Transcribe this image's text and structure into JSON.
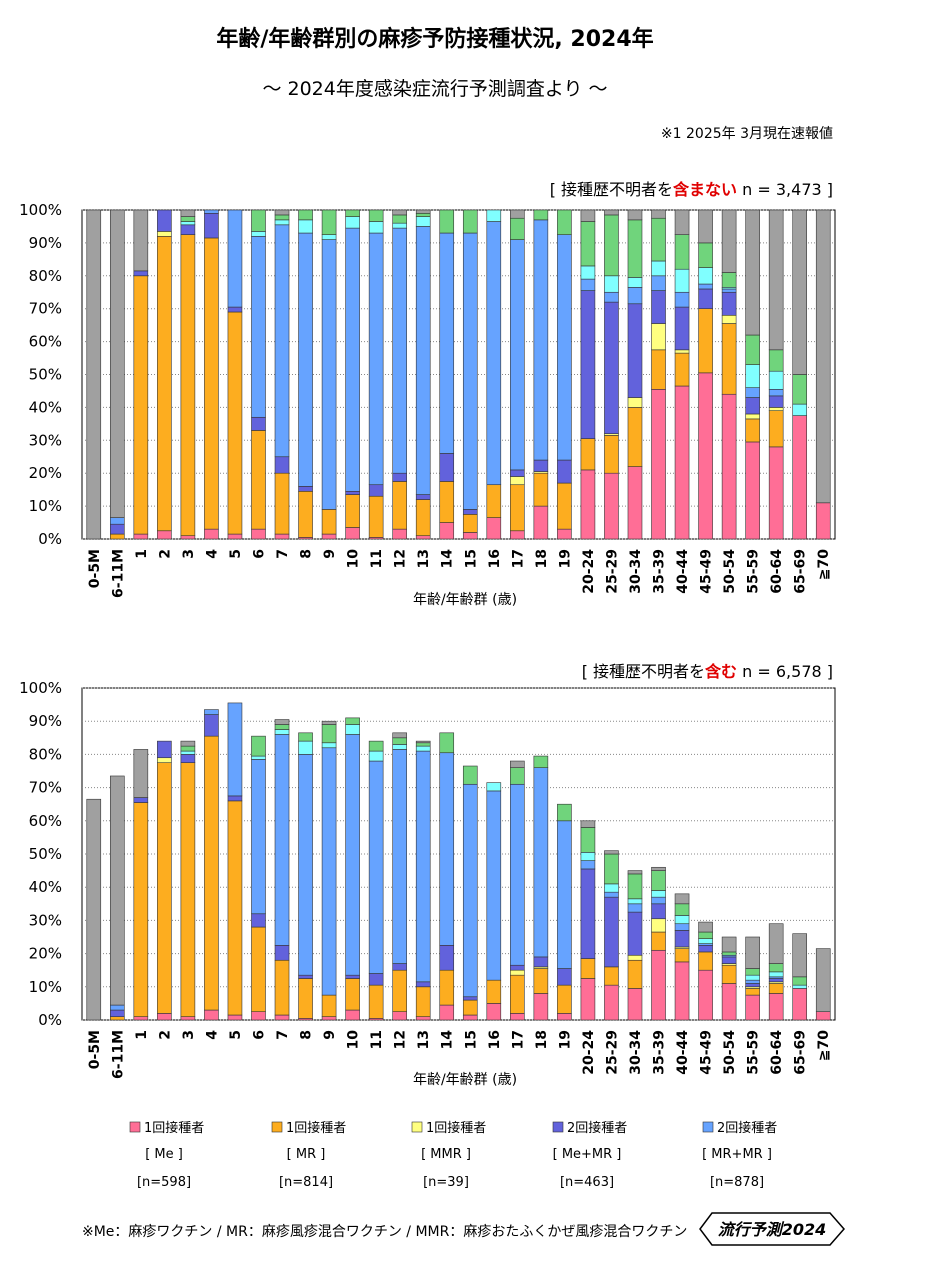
{
  "title": "年齢/年齢群別の麻疹予防接種状況, 2024年",
  "subtitle": "～ 2024年度感染症流行予測調査より ～",
  "note": "※1  2025年 3月現在速報値",
  "footnote": "※Me：麻疹ワクチン / MR：麻疹風疹混合ワクチン / MMR：麻疹おたふくかぜ風疹混合ワクチン",
  "badge": "流行予測2024",
  "chart_data": [
    {
      "type": "bar",
      "stacked": true,
      "header": [
        "[ 接種歴不明者を",
        "含まない",
        " n = 3,473 ]"
      ],
      "xlabel": "年齢/年齢群 (歳)",
      "categories": [
        "0-5M",
        "6-11M",
        "1",
        "2",
        "3",
        "4",
        "5",
        "6",
        "7",
        "8",
        "9",
        "10",
        "11",
        "12",
        "13",
        "14",
        "15",
        "16",
        "17",
        "18",
        "19",
        "20-24",
        "25-29",
        "30-34",
        "35-39",
        "40-44",
        "45-49",
        "50-54",
        "55-59",
        "60-64",
        "65-69",
        "≧70"
      ],
      "ylim": [
        0,
        100
      ],
      "yticks": [
        {
          "value": 0,
          "label": "0%"
        },
        {
          "value": 10,
          "label": "10%"
        },
        {
          "value": 20,
          "label": "20%"
        },
        {
          "value": 30,
          "label": "30%"
        },
        {
          "value": 40,
          "label": "40%"
        },
        {
          "value": 50,
          "label": "50%"
        },
        {
          "value": 60,
          "label": "60%"
        },
        {
          "value": 70,
          "label": "70%"
        },
        {
          "value": 80,
          "label": "80%"
        },
        {
          "value": 90,
          "label": "90%"
        },
        {
          "value": 100,
          "label": "100%"
        }
      ],
      "grid": true,
      "series": [
        {
          "color": "#ff6e96",
          "values": [
            0,
            0,
            1.5,
            2.5,
            1,
            3,
            1.5,
            3,
            1.5,
            0.5,
            1.5,
            3.5,
            0.5,
            3,
            1,
            5,
            2,
            6.5,
            2.5,
            10,
            3,
            21,
            20,
            22,
            45.5,
            46.5,
            50.5,
            44,
            29.5,
            28,
            37.5,
            11
          ]
        },
        {
          "color": "#fdad1f",
          "values": [
            0,
            1.5,
            78.5,
            89.5,
            91.5,
            88.5,
            67.5,
            30,
            18.5,
            14,
            7.5,
            10,
            12.5,
            14.5,
            11,
            12.5,
            5.5,
            10,
            14,
            10,
            14,
            9.5,
            11.5,
            18,
            12,
            10,
            19.5,
            21.5,
            7,
            11,
            0,
            0
          ]
        },
        {
          "color": "#ffff80",
          "values": [
            0,
            0,
            0,
            1.5,
            0,
            0,
            0,
            0,
            0,
            0,
            0,
            0,
            0,
            0,
            0,
            0,
            0,
            0,
            2.5,
            0.5,
            0,
            0,
            0.5,
            3,
            8,
            1,
            0,
            2.5,
            1.5,
            1,
            0,
            0
          ]
        },
        {
          "color": "#6262dc",
          "values": [
            0,
            3,
            1.5,
            6.5,
            3,
            7.5,
            1.5,
            4,
            5,
            1.5,
            0,
            1,
            3.5,
            2.5,
            1.5,
            8.5,
            1.5,
            0,
            2,
            3.5,
            7,
            45,
            40,
            28.5,
            10,
            13,
            6,
            7,
            5,
            3.5,
            0,
            0
          ]
        },
        {
          "color": "#66a3ff",
          "values": [
            0,
            2,
            0,
            0,
            0,
            1,
            29.5,
            55,
            70.5,
            77,
            82,
            80,
            76.5,
            74.5,
            81.5,
            67,
            84,
            80,
            70,
            73,
            68.5,
            3.5,
            3,
            5,
            4.5,
            4.5,
            1.5,
            1,
            3,
            2,
            0,
            0
          ]
        },
        {
          "color": "#80ffff",
          "values": [
            0,
            0,
            0,
            0,
            1,
            0,
            0,
            1.5,
            1.5,
            4,
            1.5,
            3.5,
            3.5,
            1.5,
            3,
            0,
            0,
            3.5,
            0,
            0,
            0,
            4,
            5,
            3,
            4.5,
            7,
            5,
            0.5,
            7,
            5.5,
            3.5,
            0
          ]
        },
        {
          "color": "#70d47c",
          "values": [
            0,
            0,
            0,
            0,
            1.5,
            0,
            0,
            6.5,
            1.5,
            3,
            7.5,
            2,
            3.5,
            2.5,
            1,
            7,
            7,
            0,
            6.5,
            3,
            7.5,
            13.5,
            18.5,
            17.5,
            13,
            10.5,
            7.5,
            4.5,
            9,
            6.5,
            9,
            0
          ]
        },
        {
          "color": "#a0a0a0",
          "values": [
            100,
            93.5,
            18.5,
            0,
            2,
            0,
            0,
            0,
            1.5,
            0,
            0,
            0,
            0,
            1.5,
            1,
            0,
            0,
            0,
            2.5,
            0,
            0,
            3.5,
            1.5,
            3,
            2.5,
            7.5,
            10,
            19,
            38,
            42.5,
            50,
            89
          ]
        }
      ]
    },
    {
      "type": "bar",
      "stacked": true,
      "header": [
        "[ 接種歴不明者を",
        "含む",
        " n = 6,578 ]"
      ],
      "xlabel": "年齢/年齢群 (歳)",
      "categories": [
        "0-5M",
        "6-11M",
        "1",
        "2",
        "3",
        "4",
        "5",
        "6",
        "7",
        "8",
        "9",
        "10",
        "11",
        "12",
        "13",
        "14",
        "15",
        "16",
        "17",
        "18",
        "19",
        "20-24",
        "25-29",
        "30-34",
        "35-39",
        "40-44",
        "45-49",
        "50-54",
        "55-59",
        "60-64",
        "65-69",
        "≧70"
      ],
      "ylim": [
        0,
        100
      ],
      "yticks": [
        {
          "value": 0,
          "label": "0%"
        },
        {
          "value": 10,
          "label": "10%"
        },
        {
          "value": 20,
          "label": "20%"
        },
        {
          "value": 30,
          "label": "30%"
        },
        {
          "value": 40,
          "label": "40%"
        },
        {
          "value": 50,
          "label": "50%"
        },
        {
          "value": 60,
          "label": "60%"
        },
        {
          "value": 70,
          "label": "70%"
        },
        {
          "value": 80,
          "label": "80%"
        },
        {
          "value": 90,
          "label": "90%"
        },
        {
          "value": 100,
          "label": "100%"
        }
      ],
      "grid": true,
      "series": [
        {
          "name": "1回接種者",
          "vaccine": "[ Me ]",
          "n": "[n=598]",
          "color": "#ff6e96",
          "values": [
            0,
            0,
            1,
            2,
            1,
            3,
            1.5,
            2.5,
            1.5,
            0.5,
            1,
            3,
            0.5,
            2.5,
            1,
            4.5,
            1.5,
            5,
            2,
            8,
            2,
            12.5,
            10.5,
            9.5,
            21,
            17.5,
            15,
            11,
            7.5,
            8,
            9.5,
            2.5
          ]
        },
        {
          "name": "1回接種者",
          "vaccine": "[ MR ]",
          "n": "[n=814]",
          "color": "#fdad1f",
          "values": [
            0,
            1,
            64.5,
            75.5,
            76.5,
            82.5,
            64.5,
            25.5,
            16.5,
            12,
            6.5,
            9.5,
            10,
            12.5,
            9,
            10.5,
            4.5,
            7,
            11.5,
            7.5,
            8.5,
            6,
            5.5,
            8.5,
            5.5,
            4,
            5.5,
            5.5,
            2,
            3,
            0,
            0
          ]
        },
        {
          "name": "1回接種者",
          "vaccine": "[ MMR ]",
          "n": "[n=39]",
          "color": "#ffff80",
          "values": [
            0,
            0,
            0,
            1.5,
            0,
            0,
            0,
            0,
            0,
            0,
            0,
            0,
            0,
            0,
            0,
            0,
            0,
            0,
            1.5,
            0.5,
            0,
            0,
            0,
            1.5,
            4,
            0.5,
            0,
            0.5,
            0.5,
            0.5,
            0,
            0
          ]
        },
        {
          "name": "2回接種者",
          "vaccine": "[ Me+MR ]",
          "n": "[n=463]",
          "color": "#6262dc",
          "values": [
            0,
            2,
            1.5,
            5,
            2.5,
            6.5,
            1.5,
            4,
            4.5,
            1,
            0,
            1,
            3.5,
            2,
            1.5,
            7.5,
            1,
            0,
            1.5,
            3,
            5,
            27,
            21,
            13,
            4.5,
            5,
            2,
            2,
            1,
            1,
            0,
            0
          ]
        },
        {
          "name": "2回接種者",
          "vaccine": "[ MR+MR ]",
          "n": "[n=878]",
          "color": "#66a3ff",
          "values": [
            0,
            1.5,
            0,
            0,
            0,
            1.5,
            28,
            46.5,
            63.5,
            66.5,
            74.5,
            72.5,
            64,
            64.5,
            69.5,
            58,
            64,
            57,
            54.5,
            57,
            44.5,
            2.5,
            1.5,
            2.5,
            2,
            2,
            0.5,
            0.5,
            1,
            0.5,
            0,
            0
          ]
        },
        {
          "color": "#80ffff",
          "values": [
            0,
            0,
            0,
            0,
            1,
            0,
            0,
            1,
            1.5,
            4,
            1.5,
            3,
            3,
            1.5,
            1.5,
            0,
            0,
            2.5,
            0,
            0,
            0,
            2.5,
            2.5,
            1.5,
            2,
            2.5,
            1.5,
            0,
            1.5,
            1.5,
            1,
            0
          ]
        },
        {
          "color": "#70d47c",
          "values": [
            0,
            0,
            0,
            0,
            1.5,
            0,
            0,
            6,
            1.5,
            2.5,
            5.5,
            2,
            3,
            2,
            1,
            6,
            5.5,
            0,
            5,
            3.5,
            5,
            7.5,
            9,
            7.5,
            6,
            3.5,
            2,
            1,
            2,
            2.5,
            2.5,
            0
          ]
        },
        {
          "color": "#a0a0a0",
          "values": [
            66.5,
            69,
            14.5,
            0,
            1.5,
            0,
            0,
            0,
            1.5,
            0,
            1,
            0,
            0,
            1.5,
            0.5,
            0,
            0,
            0,
            2,
            0,
            0,
            2,
            1,
            1,
            1,
            3,
            3,
            4.5,
            9.5,
            12,
            13,
            19
          ]
        }
      ]
    }
  ]
}
